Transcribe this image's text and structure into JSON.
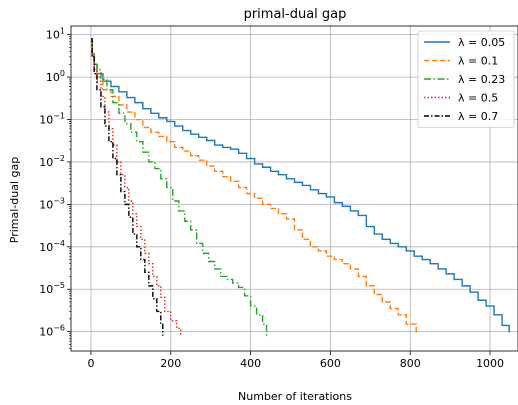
{
  "chart_data": {
    "type": "line",
    "title": "primal-dual gap",
    "xlabel": "Number of iterations",
    "ylabel": "Primal-dual gap",
    "xlim": [
      -50,
      1070
    ],
    "ylim": [
      3.5e-07,
      16
    ],
    "yscale": "log",
    "grid": true,
    "legend_position": "top-right",
    "x_ticks": [
      {
        "value": 0,
        "label": "0"
      },
      {
        "value": 200,
        "label": "200"
      },
      {
        "value": 400,
        "label": "400"
      },
      {
        "value": 600,
        "label": "600"
      },
      {
        "value": 800,
        "label": "800"
      },
      {
        "value": 1000,
        "label": "1000"
      }
    ],
    "y_ticks": [
      {
        "value": 1e-06,
        "base": "10",
        "exp": "−6"
      },
      {
        "value": 1e-05,
        "base": "10",
        "exp": "−5"
      },
      {
        "value": 0.0001,
        "base": "10",
        "exp": "−4"
      },
      {
        "value": 0.001,
        "base": "10",
        "exp": "−3"
      },
      {
        "value": 0.01,
        "base": "10",
        "exp": "−2"
      },
      {
        "value": 0.1,
        "base": "10",
        "exp": "−1"
      },
      {
        "value": 1,
        "base": "10",
        "exp": "0"
      },
      {
        "value": 10,
        "base": "10",
        "exp": "1"
      }
    ],
    "series": [
      {
        "name": "λ = 0.05",
        "color": "#1f77b4",
        "dash": "solid",
        "points": [
          [
            0,
            7
          ],
          [
            3,
            3.5
          ],
          [
            8,
            2
          ],
          [
            15,
            1.2
          ],
          [
            30,
            0.8
          ],
          [
            50,
            0.6
          ],
          [
            70,
            0.45
          ],
          [
            90,
            0.33
          ],
          [
            110,
            0.25
          ],
          [
            130,
            0.18
          ],
          [
            150,
            0.14
          ],
          [
            170,
            0.11
          ],
          [
            190,
            0.09
          ],
          [
            210,
            0.07
          ],
          [
            230,
            0.055
          ],
          [
            250,
            0.045
          ],
          [
            270,
            0.038
          ],
          [
            290,
            0.032
          ],
          [
            310,
            0.025
          ],
          [
            330,
            0.022
          ],
          [
            350,
            0.02
          ],
          [
            370,
            0.016
          ],
          [
            390,
            0.012
          ],
          [
            410,
            0.009
          ],
          [
            430,
            0.0075
          ],
          [
            450,
            0.006
          ],
          [
            470,
            0.005
          ],
          [
            490,
            0.004
          ],
          [
            510,
            0.0033
          ],
          [
            530,
            0.0028
          ],
          [
            550,
            0.0022
          ],
          [
            570,
            0.0018
          ],
          [
            590,
            0.0015
          ],
          [
            610,
            0.0011
          ],
          [
            630,
            0.0009
          ],
          [
            650,
            0.0007
          ],
          [
            670,
            0.00055
          ],
          [
            690,
            0.0003
          ],
          [
            710,
            0.0002
          ],
          [
            730,
            0.00015
          ],
          [
            750,
            0.00012
          ],
          [
            770,
            0.0001
          ],
          [
            790,
            8e-05
          ],
          [
            810,
            6e-05
          ],
          [
            830,
            5e-05
          ],
          [
            850,
            4e-05
          ],
          [
            870,
            3e-05
          ],
          [
            890,
            2.3e-05
          ],
          [
            910,
            1.7e-05
          ],
          [
            930,
            1.2e-05
          ],
          [
            950,
            8.5e-06
          ],
          [
            970,
            5.5e-06
          ],
          [
            990,
            4e-06
          ],
          [
            1010,
            2.5e-06
          ],
          [
            1030,
            1.4e-06
          ],
          [
            1048,
            9.5e-07
          ]
        ]
      },
      {
        "name": "λ = 0.1",
        "color": "#ff7f0e",
        "dash": "dashed",
        "points": [
          [
            0,
            6
          ],
          [
            3,
            3
          ],
          [
            8,
            1.5
          ],
          [
            15,
            1
          ],
          [
            30,
            0.5
          ],
          [
            50,
            0.35
          ],
          [
            70,
            0.22
          ],
          [
            90,
            0.15
          ],
          [
            110,
            0.1
          ],
          [
            130,
            0.065
          ],
          [
            150,
            0.05
          ],
          [
            170,
            0.04
          ],
          [
            190,
            0.03
          ],
          [
            210,
            0.022
          ],
          [
            230,
            0.018
          ],
          [
            250,
            0.014
          ],
          [
            270,
            0.011
          ],
          [
            290,
            0.008
          ],
          [
            310,
            0.006
          ],
          [
            330,
            0.0045
          ],
          [
            350,
            0.0035
          ],
          [
            370,
            0.0025
          ],
          [
            390,
            0.0018
          ],
          [
            410,
            0.0014
          ],
          [
            430,
            0.001
          ],
          [
            450,
            0.0008
          ],
          [
            470,
            0.0006
          ],
          [
            490,
            0.00045
          ],
          [
            510,
            0.00025
          ],
          [
            530,
            0.00015
          ],
          [
            550,
            0.0001
          ],
          [
            570,
            8e-05
          ],
          [
            590,
            6e-05
          ],
          [
            610,
            5e-05
          ],
          [
            630,
            4e-05
          ],
          [
            650,
            3e-05
          ],
          [
            670,
            2e-05
          ],
          [
            690,
            1.2e-05
          ],
          [
            710,
            7.5e-06
          ],
          [
            730,
            5e-06
          ],
          [
            750,
            3.5e-06
          ],
          [
            770,
            2.5e-06
          ],
          [
            790,
            1.5e-06
          ],
          [
            815,
            9e-07
          ]
        ]
      },
      {
        "name": "λ = 0.23",
        "color": "#2ca02c",
        "dash": "dashdot",
        "points": [
          [
            0,
            7
          ],
          [
            3,
            3.5
          ],
          [
            8,
            2
          ],
          [
            15,
            1.5
          ],
          [
            25,
            0.9
          ],
          [
            40,
            0.5
          ],
          [
            55,
            0.25
          ],
          [
            70,
            0.14
          ],
          [
            85,
            0.08
          ],
          [
            100,
            0.05
          ],
          [
            115,
            0.03
          ],
          [
            130,
            0.017
          ],
          [
            145,
            0.01
          ],
          [
            160,
            0.007
          ],
          [
            175,
            0.004
          ],
          [
            190,
            0.0025
          ],
          [
            205,
            0.0012
          ],
          [
            220,
            0.0007
          ],
          [
            235,
            0.0004
          ],
          [
            250,
            0.00025
          ],
          [
            265,
            0.00012
          ],
          [
            280,
            7e-05
          ],
          [
            295,
            4.5e-05
          ],
          [
            310,
            3e-05
          ],
          [
            325,
            2e-05
          ],
          [
            340,
            1.7e-05
          ],
          [
            355,
            1.4e-05
          ],
          [
            370,
            1.1e-05
          ],
          [
            385,
            7e-06
          ],
          [
            400,
            4e-06
          ],
          [
            415,
            2.5e-06
          ],
          [
            430,
            1.5e-06
          ],
          [
            440,
            7e-07
          ]
        ]
      },
      {
        "name": "λ = 0.5",
        "color": "#d62728",
        "dash": "dotted",
        "points": [
          [
            0,
            7
          ],
          [
            3,
            3
          ],
          [
            8,
            1.5
          ],
          [
            15,
            0.8
          ],
          [
            25,
            0.35
          ],
          [
            35,
            0.15
          ],
          [
            45,
            0.06
          ],
          [
            55,
            0.025
          ],
          [
            65,
            0.01
          ],
          [
            75,
            0.005
          ],
          [
            85,
            0.0025
          ],
          [
            95,
            0.0012
          ],
          [
            105,
            0.0006
          ],
          [
            115,
            0.0003
          ],
          [
            125,
            0.00015
          ],
          [
            135,
            7e-05
          ],
          [
            145,
            4e-05
          ],
          [
            155,
            2e-05
          ],
          [
            165,
            1.2e-05
          ],
          [
            175,
            6.5e-06
          ],
          [
            185,
            3e-06
          ],
          [
            200,
            1.8e-06
          ],
          [
            215,
            1.2e-06
          ],
          [
            225,
            8e-07
          ]
        ]
      },
      {
        "name": "λ = 0.7",
        "color": "#000000",
        "dash": "dashdotted",
        "points": [
          [
            0,
            8
          ],
          [
            3,
            3
          ],
          [
            8,
            1.2
          ],
          [
            15,
            0.5
          ],
          [
            25,
            0.2
          ],
          [
            35,
            0.07
          ],
          [
            45,
            0.03
          ],
          [
            55,
            0.012
          ],
          [
            65,
            0.005
          ],
          [
            75,
            0.002
          ],
          [
            85,
            0.001
          ],
          [
            95,
            0.0005
          ],
          [
            105,
            0.0002
          ],
          [
            115,
            0.0001
          ],
          [
            125,
            5e-05
          ],
          [
            135,
            2.5e-05
          ],
          [
            145,
            1.2e-05
          ],
          [
            155,
            6e-06
          ],
          [
            165,
            3e-06
          ],
          [
            175,
            1.5e-06
          ],
          [
            180,
            8e-07
          ]
        ]
      }
    ]
  }
}
